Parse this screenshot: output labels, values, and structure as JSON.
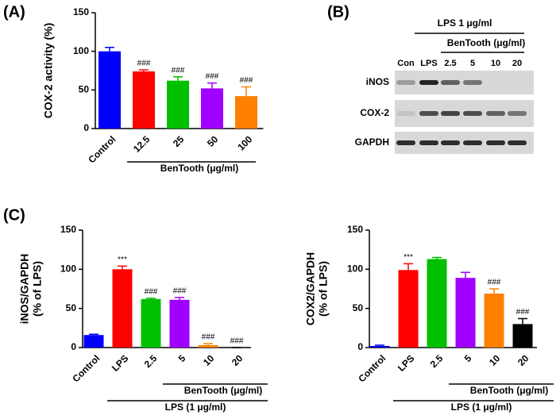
{
  "panel_labels": [
    "(A)",
    "(B)",
    "(C)"
  ],
  "chart_data": [
    {
      "type": "bar",
      "ylabel": [
        "COX-2 activity (%)"
      ],
      "categories": [
        "Control",
        "12.5",
        "25",
        "50",
        "100"
      ],
      "values": [
        100,
        74,
        62,
        52,
        42
      ],
      "errors": [
        5,
        2,
        5,
        7,
        12
      ],
      "colors": [
        "#0000ff",
        "#ff0000",
        "#00c000",
        "#a000ff",
        "#ff8000"
      ],
      "annotations": [
        null,
        "###",
        "###",
        "###",
        "###"
      ],
      "groups": [
        "BenTooth (μg/ml)"
      ],
      "ylim": [
        0,
        150
      ],
      "yticks": [
        0,
        50,
        100,
        150
      ]
    },
    {
      "type": "bar",
      "ylabel": [
        "iNOS/GAPDH",
        "(% of LPS)"
      ],
      "categories": [
        "Control",
        "LPS",
        "2.5",
        "5",
        "10",
        "20"
      ],
      "values": [
        16,
        100,
        62,
        61,
        3,
        0
      ],
      "errors": [
        1,
        4,
        1,
        3,
        2,
        0
      ],
      "colors": [
        "#0000ff",
        "#ff0000",
        "#00c000",
        "#a000ff",
        "#ff8000",
        "#000000"
      ],
      "annotations": [
        null,
        "***",
        "###",
        "###",
        "###",
        "###"
      ],
      "groups": [
        "BenTooth (μg/ml)",
        "LPS (1 μg/ml)"
      ],
      "ylim": [
        0,
        150
      ],
      "yticks": [
        0,
        50,
        100,
        150
      ]
    },
    {
      "type": "bar",
      "ylabel": [
        "COX2/GAPDH",
        "(% of LPS)"
      ],
      "categories": [
        "Control",
        "LPS",
        "2.5",
        "5",
        "10",
        "20"
      ],
      "values": [
        2,
        99,
        113,
        89,
        69,
        30
      ],
      "errors": [
        1,
        8,
        2,
        7,
        6,
        7
      ],
      "colors": [
        "#0000ff",
        "#ff0000",
        "#00c000",
        "#a000ff",
        "#ff8000",
        "#000000"
      ],
      "annotations": [
        null,
        "***",
        null,
        null,
        "###",
        "###"
      ],
      "groups": [
        "BenTooth (μg/ml)",
        "LPS (1 μg/ml)"
      ],
      "ylim": [
        0,
        150
      ],
      "yticks": [
        0,
        50,
        100,
        150
      ]
    }
  ],
  "blot": {
    "header": "LPS 1 μg/ml",
    "subheader": "BenTooth (μg/ml)",
    "lanes": [
      "Con",
      "LPS",
      "2.5",
      "5",
      "10",
      "20"
    ],
    "rows": [
      {
        "name": "iNOS",
        "bands": [
          0.3,
          0.9,
          0.6,
          0.5,
          0,
          0
        ]
      },
      {
        "name": "COX-2",
        "bands": [
          0.1,
          0.7,
          0.75,
          0.7,
          0.6,
          0.5
        ]
      },
      {
        "name": "GAPDH",
        "bands": [
          0.85,
          0.85,
          0.85,
          0.85,
          0.85,
          0.85
        ]
      }
    ]
  }
}
